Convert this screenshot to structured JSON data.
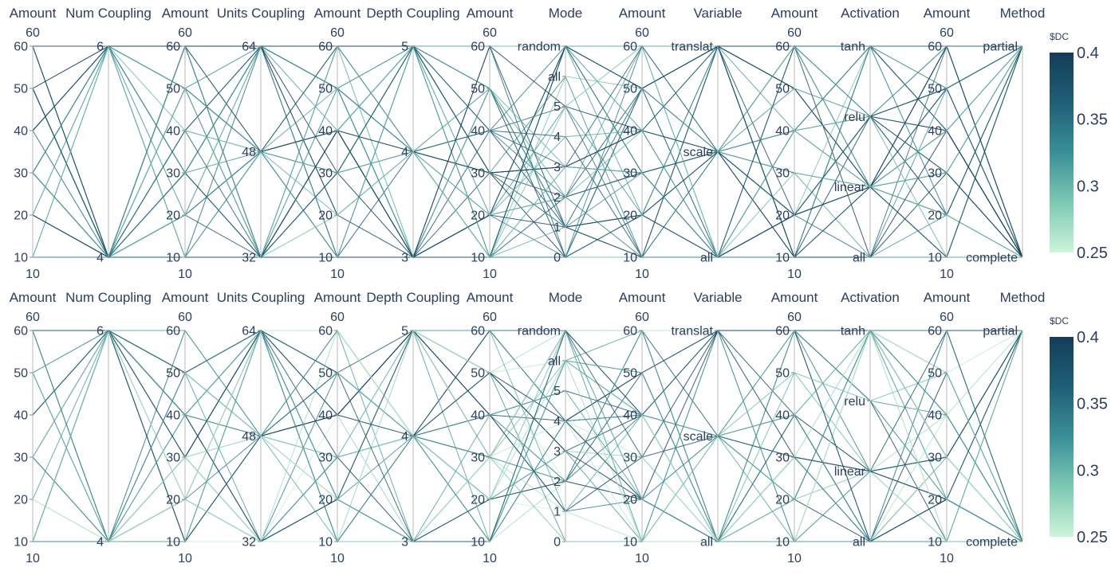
{
  "chart_data": [
    {
      "type": "parallel_coordinates",
      "name": "top",
      "colorbar": {
        "title": "$DC",
        "range": [
          0.25,
          0.4
        ],
        "ticks": [
          "0.4",
          "0.35",
          "0.3",
          "0.25"
        ],
        "colors": [
          "#ccf5d8",
          "#7dc9b4",
          "#3a8f97",
          "#1f5f75",
          "#143d59"
        ]
      },
      "dimensions": [
        {
          "label": "Amount",
          "ticks": [
            "60",
            "50",
            "40",
            "30",
            "20",
            "10"
          ],
          "range_min": "10",
          "range_max": "60"
        },
        {
          "label": "Num Coupling",
          "ticks": [
            "6",
            "4"
          ]
        },
        {
          "label": "Amount",
          "ticks": [
            "60",
            "50",
            "40",
            "30",
            "20",
            "10"
          ],
          "range_min": "10",
          "range_max": "60"
        },
        {
          "label": "Units Coupling",
          "ticks": [
            "64",
            "48",
            "32"
          ]
        },
        {
          "label": "Amount",
          "ticks": [
            "60",
            "50",
            "40",
            "30",
            "20",
            "10"
          ],
          "range_min": "10",
          "range_max": "60"
        },
        {
          "label": "Depth Coupling",
          "ticks": [
            "5",
            "4",
            "3"
          ]
        },
        {
          "label": "Amount",
          "ticks": [
            "60",
            "50",
            "40",
            "30",
            "20",
            "10"
          ],
          "range_min": "10",
          "range_max": "60"
        },
        {
          "label": "Mode",
          "ticks": [
            "random",
            "all",
            "5",
            "4",
            "3",
            "2",
            "1",
            "0"
          ]
        },
        {
          "label": "Amount",
          "ticks": [
            "60",
            "50",
            "40",
            "30",
            "20",
            "10"
          ],
          "range_min": "10",
          "range_max": "60"
        },
        {
          "label": "Variable",
          "ticks": [
            "translat",
            "scale",
            "all"
          ]
        },
        {
          "label": "Amount",
          "ticks": [
            "60",
            "50",
            "40",
            "30",
            "20",
            "10"
          ],
          "range_min": "10",
          "range_max": "60"
        },
        {
          "label": "Activation",
          "ticks": [
            "tanh",
            "relu",
            "linear",
            "all"
          ]
        },
        {
          "label": "Amount",
          "ticks": [
            "60",
            "50",
            "40",
            "30",
            "20",
            "10"
          ],
          "range_min": "10",
          "range_max": "60"
        },
        {
          "label": "Method",
          "ticks": [
            "partial",
            "complete"
          ]
        }
      ]
    },
    {
      "type": "parallel_coordinates",
      "name": "bottom",
      "colorbar": {
        "title": "$DC",
        "range": [
          0.25,
          0.4
        ],
        "ticks": [
          "0.4",
          "0.35",
          "0.3",
          "0.25"
        ],
        "colors": [
          "#ccf5d8",
          "#7dc9b4",
          "#3a8f97",
          "#1f5f75",
          "#143d59"
        ]
      },
      "dimensions": [
        {
          "label": "Amount",
          "ticks": [
            "60",
            "50",
            "40",
            "30",
            "20",
            "10"
          ],
          "range_min": "10",
          "range_max": "60"
        },
        {
          "label": "Num Coupling",
          "ticks": [
            "6",
            "4"
          ]
        },
        {
          "label": "Amount",
          "ticks": [
            "60",
            "50",
            "40",
            "30",
            "20",
            "10"
          ],
          "range_min": "10",
          "range_max": "60"
        },
        {
          "label": "Units Coupling",
          "ticks": [
            "64",
            "48",
            "32"
          ]
        },
        {
          "label": "Amount",
          "ticks": [
            "60",
            "50",
            "40",
            "30",
            "20",
            "10"
          ],
          "range_min": "10",
          "range_max": "60"
        },
        {
          "label": "Depth Coupling",
          "ticks": [
            "5",
            "4",
            "3"
          ]
        },
        {
          "label": "Amount",
          "ticks": [
            "60",
            "50",
            "40",
            "30",
            "20",
            "10"
          ],
          "range_min": "10",
          "range_max": "60"
        },
        {
          "label": "Mode",
          "ticks": [
            "random",
            "all",
            "5",
            "4",
            "3",
            "2",
            "1",
            "0"
          ]
        },
        {
          "label": "Amount",
          "ticks": [
            "60",
            "50",
            "40",
            "30",
            "20",
            "10"
          ],
          "range_min": "10",
          "range_max": "60"
        },
        {
          "label": "Variable",
          "ticks": [
            "translat",
            "scale",
            "all"
          ]
        },
        {
          "label": "Amount",
          "ticks": [
            "60",
            "50",
            "40",
            "30",
            "20",
            "10"
          ],
          "range_min": "10",
          "range_max": "60"
        },
        {
          "label": "Activation",
          "ticks": [
            "tanh",
            "relu",
            "linear",
            "all"
          ]
        },
        {
          "label": "Amount",
          "ticks": [
            "60",
            "50",
            "40",
            "30",
            "20",
            "10"
          ],
          "range_min": "10",
          "range_max": "60"
        },
        {
          "label": "Method",
          "ticks": [
            "partial",
            "complete"
          ]
        }
      ]
    }
  ]
}
